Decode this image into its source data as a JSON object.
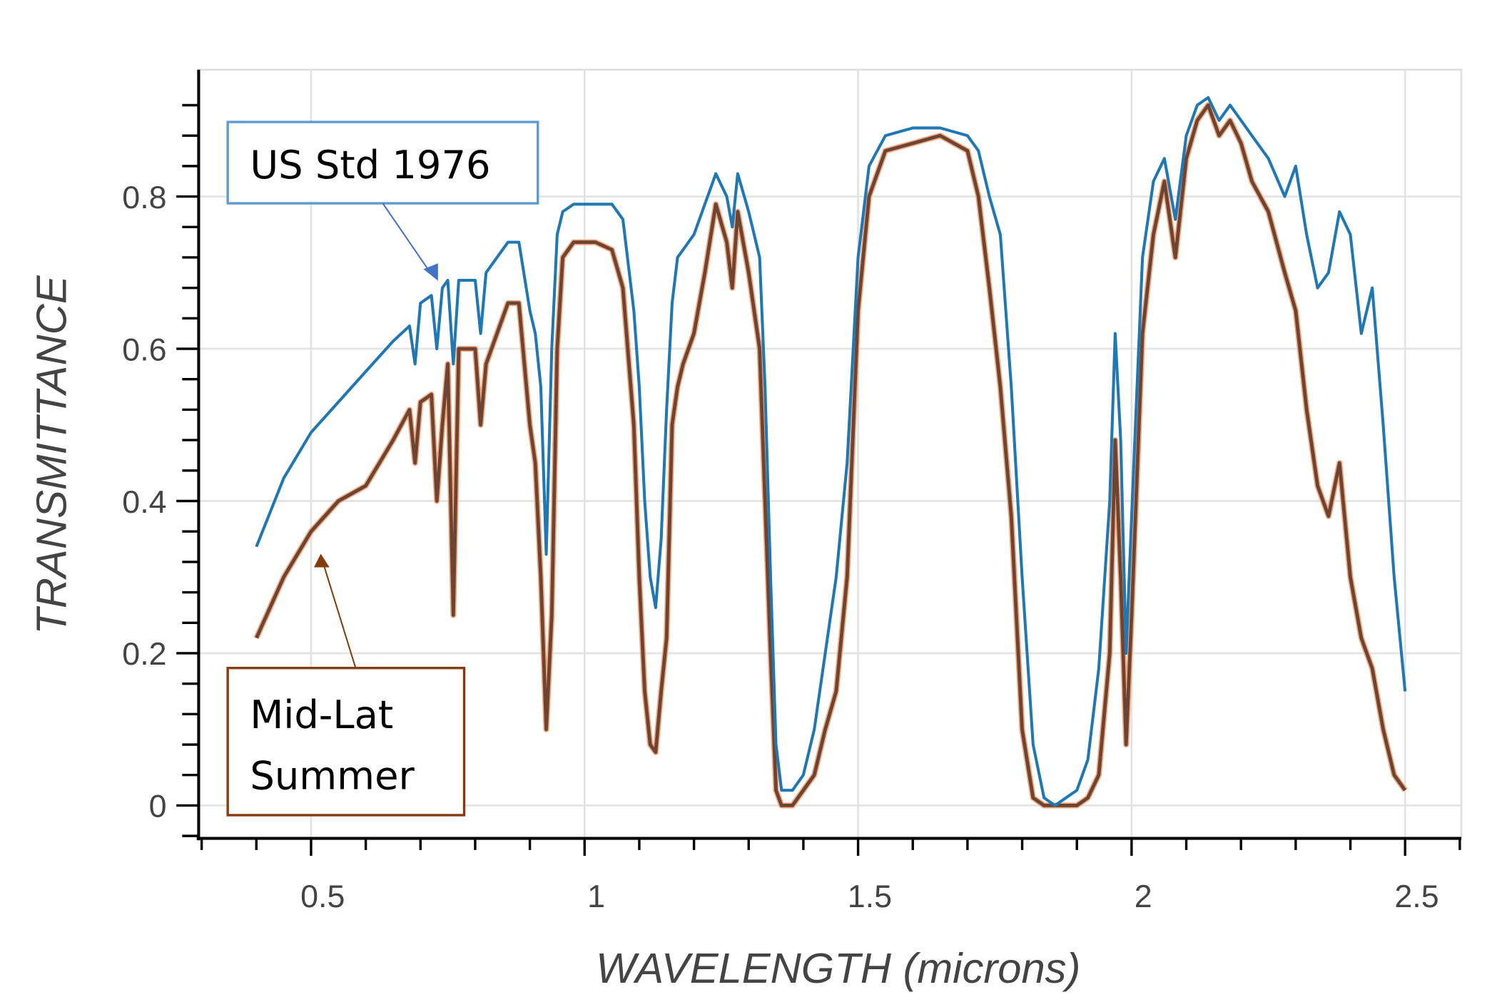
{
  "chart_data": {
    "type": "line",
    "title": "",
    "xlabel": "WAVELENGTH (microns)",
    "ylabel": "TRANSMITTANCE",
    "xlim": [
      0.3,
      2.62
    ],
    "ylim": [
      -0.05,
      0.97
    ],
    "xticks": [
      0.5,
      1,
      1.5,
      2,
      2.5
    ],
    "xtick_labels": [
      "0.5",
      "1",
      "1.5",
      "2",
      "2.5"
    ],
    "yticks": [
      0,
      0.2,
      0.4,
      0.6,
      0.8
    ],
    "ytick_labels": [
      "0",
      "0.2",
      "0.4",
      "0.6",
      "0.8"
    ],
    "grid": true,
    "legend": "annotation boxes with arrows",
    "series": [
      {
        "name": "US Std 1976",
        "color": "#1f77b4",
        "x": [
          0.4,
          0.45,
          0.5,
          0.55,
          0.6,
          0.65,
          0.68,
          0.69,
          0.7,
          0.72,
          0.73,
          0.74,
          0.75,
          0.76,
          0.77,
          0.8,
          0.81,
          0.82,
          0.84,
          0.86,
          0.88,
          0.9,
          0.91,
          0.92,
          0.93,
          0.94,
          0.95,
          0.96,
          0.98,
          1.0,
          1.02,
          1.05,
          1.07,
          1.09,
          1.1,
          1.11,
          1.12,
          1.13,
          1.14,
          1.15,
          1.16,
          1.17,
          1.18,
          1.2,
          1.22,
          1.24,
          1.26,
          1.27,
          1.28,
          1.3,
          1.32,
          1.33,
          1.34,
          1.35,
          1.36,
          1.38,
          1.4,
          1.42,
          1.44,
          1.46,
          1.48,
          1.5,
          1.52,
          1.55,
          1.6,
          1.65,
          1.7,
          1.72,
          1.74,
          1.76,
          1.78,
          1.8,
          1.82,
          1.84,
          1.86,
          1.88,
          1.9,
          1.92,
          1.94,
          1.96,
          1.97,
          1.98,
          1.99,
          2.0,
          2.02,
          2.04,
          2.06,
          2.08,
          2.1,
          2.12,
          2.14,
          2.16,
          2.18,
          2.2,
          2.22,
          2.25,
          2.28,
          2.3,
          2.32,
          2.34,
          2.36,
          2.38,
          2.4,
          2.42,
          2.44,
          2.46,
          2.48,
          2.5
        ],
        "y": [
          0.34,
          0.43,
          0.49,
          0.53,
          0.57,
          0.61,
          0.63,
          0.58,
          0.66,
          0.67,
          0.6,
          0.68,
          0.69,
          0.58,
          0.69,
          0.69,
          0.62,
          0.7,
          0.72,
          0.74,
          0.74,
          0.65,
          0.62,
          0.55,
          0.33,
          0.6,
          0.75,
          0.78,
          0.79,
          0.79,
          0.79,
          0.79,
          0.77,
          0.65,
          0.55,
          0.4,
          0.3,
          0.26,
          0.35,
          0.52,
          0.66,
          0.72,
          0.73,
          0.75,
          0.79,
          0.83,
          0.8,
          0.76,
          0.83,
          0.78,
          0.72,
          0.55,
          0.3,
          0.08,
          0.02,
          0.02,
          0.04,
          0.1,
          0.2,
          0.3,
          0.45,
          0.72,
          0.84,
          0.88,
          0.89,
          0.89,
          0.88,
          0.86,
          0.8,
          0.75,
          0.55,
          0.3,
          0.08,
          0.01,
          0.0,
          0.01,
          0.02,
          0.06,
          0.18,
          0.4,
          0.62,
          0.48,
          0.2,
          0.38,
          0.72,
          0.82,
          0.85,
          0.77,
          0.88,
          0.92,
          0.93,
          0.9,
          0.92,
          0.9,
          0.88,
          0.85,
          0.8,
          0.84,
          0.75,
          0.68,
          0.7,
          0.78,
          0.75,
          0.62,
          0.68,
          0.5,
          0.3,
          0.15
        ],
        "annotation": "US Std 1976"
      },
      {
        "name": "Mid-Lat Summer",
        "color": "#6b4433",
        "highlight_color": "#f4a57a",
        "x": [
          0.4,
          0.45,
          0.5,
          0.55,
          0.6,
          0.65,
          0.68,
          0.69,
          0.7,
          0.72,
          0.73,
          0.74,
          0.75,
          0.76,
          0.77,
          0.8,
          0.81,
          0.82,
          0.84,
          0.86,
          0.88,
          0.9,
          0.91,
          0.92,
          0.93,
          0.94,
          0.95,
          0.96,
          0.98,
          1.0,
          1.02,
          1.05,
          1.07,
          1.09,
          1.1,
          1.11,
          1.12,
          1.13,
          1.14,
          1.15,
          1.16,
          1.17,
          1.18,
          1.2,
          1.22,
          1.24,
          1.26,
          1.27,
          1.28,
          1.3,
          1.32,
          1.33,
          1.34,
          1.35,
          1.36,
          1.38,
          1.4,
          1.42,
          1.44,
          1.46,
          1.48,
          1.5,
          1.52,
          1.55,
          1.6,
          1.65,
          1.7,
          1.72,
          1.74,
          1.76,
          1.78,
          1.8,
          1.82,
          1.84,
          1.86,
          1.88,
          1.9,
          1.92,
          1.94,
          1.96,
          1.97,
          1.98,
          1.99,
          2.0,
          2.02,
          2.04,
          2.06,
          2.08,
          2.1,
          2.12,
          2.14,
          2.16,
          2.18,
          2.2,
          2.22,
          2.25,
          2.28,
          2.3,
          2.32,
          2.34,
          2.36,
          2.38,
          2.4,
          2.42,
          2.44,
          2.46,
          2.48,
          2.5
        ],
        "y": [
          0.22,
          0.3,
          0.36,
          0.4,
          0.42,
          0.48,
          0.52,
          0.45,
          0.53,
          0.54,
          0.4,
          0.5,
          0.58,
          0.25,
          0.6,
          0.6,
          0.5,
          0.58,
          0.62,
          0.66,
          0.66,
          0.5,
          0.45,
          0.3,
          0.1,
          0.25,
          0.6,
          0.72,
          0.74,
          0.74,
          0.74,
          0.73,
          0.68,
          0.5,
          0.3,
          0.15,
          0.08,
          0.07,
          0.15,
          0.22,
          0.5,
          0.55,
          0.58,
          0.62,
          0.7,
          0.79,
          0.74,
          0.68,
          0.78,
          0.7,
          0.6,
          0.4,
          0.2,
          0.02,
          0.0,
          0.0,
          0.02,
          0.04,
          0.1,
          0.15,
          0.3,
          0.65,
          0.8,
          0.86,
          0.87,
          0.88,
          0.86,
          0.8,
          0.68,
          0.55,
          0.38,
          0.1,
          0.01,
          0.0,
          0.0,
          0.0,
          0.0,
          0.01,
          0.04,
          0.2,
          0.48,
          0.3,
          0.08,
          0.25,
          0.62,
          0.75,
          0.82,
          0.72,
          0.85,
          0.9,
          0.92,
          0.88,
          0.9,
          0.87,
          0.82,
          0.78,
          0.7,
          0.65,
          0.52,
          0.42,
          0.38,
          0.45,
          0.3,
          0.22,
          0.18,
          0.1,
          0.04,
          0.02
        ],
        "annotation": "Mid-Lat Summer"
      }
    ]
  },
  "annotations": {
    "us_std": {
      "line1": "US Std 1976",
      "border_color": "#5b9bd5",
      "arrow_color": "#4472c4"
    },
    "mid_lat": {
      "line1": "Mid-Lat",
      "line2": "Summer",
      "border_color": "#843c0c",
      "arrow_color": "#843c0c"
    }
  }
}
